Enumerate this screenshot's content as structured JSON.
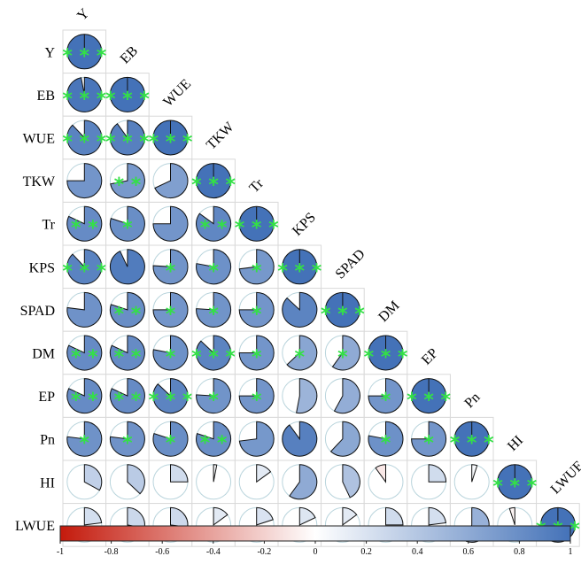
{
  "chart_data": {
    "type": "correlogram-pie",
    "variables": [
      "Y",
      "EB",
      "WUE",
      "TKW",
      "Tr",
      "KPS",
      "SPAD",
      "DM",
      "EP",
      "Pn",
      "HI",
      "LWUE"
    ],
    "matrix": [
      [
        1.0
      ],
      [
        0.97,
        1.0
      ],
      [
        0.88,
        0.9,
        1.0
      ],
      [
        0.75,
        0.72,
        0.68,
        1.0
      ],
      [
        0.82,
        0.8,
        0.75,
        0.85,
        1.0
      ],
      [
        0.88,
        0.93,
        0.76,
        0.78,
        0.73,
        1.0
      ],
      [
        0.77,
        0.8,
        0.75,
        0.76,
        0.75,
        0.87,
        1.0
      ],
      [
        0.82,
        0.82,
        0.78,
        0.87,
        0.75,
        0.63,
        0.6,
        1.0
      ],
      [
        0.82,
        0.82,
        0.87,
        0.76,
        0.75,
        0.53,
        0.58,
        0.75,
        1.0
      ],
      [
        0.77,
        0.77,
        0.8,
        0.8,
        0.73,
        0.9,
        0.62,
        0.78,
        0.75,
        1.0
      ],
      [
        0.33,
        0.37,
        0.25,
        0.03,
        0.15,
        0.6,
        0.43,
        -0.1,
        0.25,
        0.05,
        1.0
      ],
      [
        0.23,
        0.28,
        0.27,
        0.15,
        0.2,
        0.18,
        0.15,
        0.25,
        0.23,
        0.55,
        -0.05,
        1.0
      ]
    ],
    "stars": [
      [
        "***"
      ],
      [
        "***",
        "***"
      ],
      [
        "***",
        "***",
        "***"
      ],
      [
        "",
        "**",
        "",
        "***"
      ],
      [
        "**",
        "*",
        "",
        "**",
        "***"
      ],
      [
        "***",
        "",
        "*",
        "*",
        "*",
        "***"
      ],
      [
        "",
        "**",
        "*",
        "*",
        "*",
        "",
        "***"
      ],
      [
        "**",
        "**",
        "*",
        "***",
        "*",
        "*",
        "*",
        "***"
      ],
      [
        "**",
        "**",
        "***",
        "*",
        "*",
        "",
        "",
        "*",
        "***"
      ],
      [
        "*",
        "*",
        "*",
        "**",
        "",
        "",
        "",
        "*",
        "*",
        "***"
      ],
      [
        "",
        "",
        "",
        "",
        "",
        "",
        "",
        "",
        "",
        "",
        "***"
      ],
      [
        "",
        "",
        "",
        "",
        "",
        "",
        "",
        "",
        "",
        "",
        "",
        "***"
      ]
    ],
    "colorbar": {
      "ticks": [
        "-1",
        "-0.8",
        "-0.6",
        "-0.4",
        "-0.2",
        "0",
        "0.2",
        "0.4",
        "0.6",
        "0.8",
        "1"
      ],
      "range": [
        -1,
        1
      ],
      "low_color": "#c41a0c",
      "mid_color": "#ffffff",
      "high_color": "#4472b8"
    },
    "star_color": "#33e046",
    "grid": true,
    "legend": "bottom"
  }
}
